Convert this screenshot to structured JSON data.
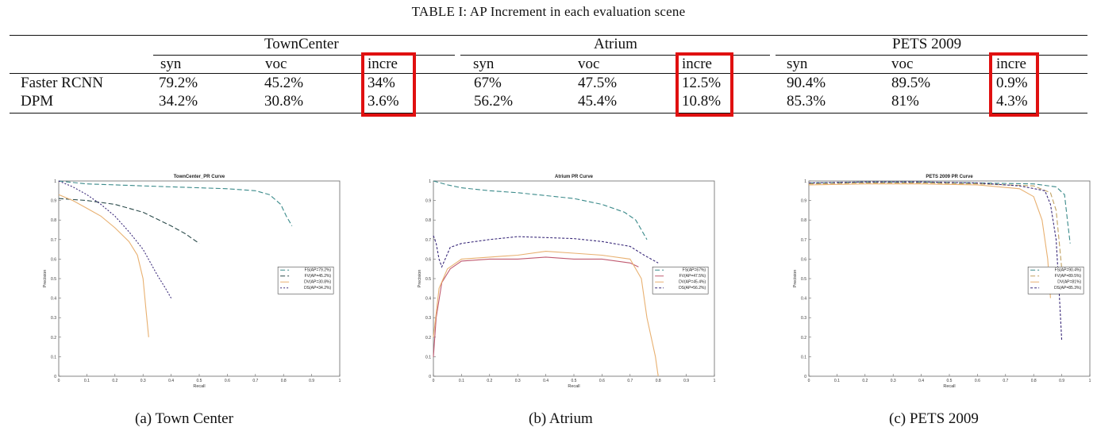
{
  "table": {
    "caption": "TABLE I: AP Increment in each evaluation scene",
    "groups": [
      "TownCenter",
      "Atrium",
      "PETS 2009"
    ],
    "subheaders": [
      "syn",
      "voc",
      "incre",
      "syn",
      "voc",
      "incre",
      "syn",
      "voc",
      "incre"
    ],
    "rows": [
      {
        "label": "Faster RCNN",
        "cells": [
          "79.2%",
          "45.2%",
          "34%",
          "67%",
          "47.5%",
          "12.5%",
          "90.4%",
          "89.5%",
          "0.9%"
        ]
      },
      {
        "label": "DPM",
        "cells": [
          "34.2%",
          "30.8%",
          "3.6%",
          "56.2%",
          "45.4%",
          "10.8%",
          "85.3%",
          "81%",
          "4.3%"
        ]
      }
    ],
    "highlight_color": "#e01010"
  },
  "chart_data": [
    {
      "type": "line",
      "title": "TownCenter_PR Curve",
      "xlabel": "Recall",
      "ylabel": "Precision",
      "xlim": [
        0,
        1
      ],
      "ylim": [
        0,
        1
      ],
      "xticks": [
        "0",
        "0.1",
        "0.2",
        "0.3",
        "0.4",
        "0.5",
        "0.6",
        "0.7",
        "0.8",
        "0.9",
        "1"
      ],
      "yticks": [
        "0",
        "0.1",
        "0.2",
        "0.3",
        "0.4",
        "0.5",
        "0.6",
        "0.7",
        "0.8",
        "0.9",
        "1"
      ],
      "legend_position": "center-right",
      "series": [
        {
          "name": "FS(AP=79.2%)",
          "color": "#3a8a8a",
          "dash": "6,3",
          "points": [
            [
              0.0,
              1.0
            ],
            [
              0.1,
              0.985
            ],
            [
              0.2,
              0.98
            ],
            [
              0.3,
              0.975
            ],
            [
              0.4,
              0.97
            ],
            [
              0.5,
              0.965
            ],
            [
              0.6,
              0.96
            ],
            [
              0.7,
              0.95
            ],
            [
              0.75,
              0.93
            ],
            [
              0.79,
              0.88
            ],
            [
              0.81,
              0.82
            ],
            [
              0.83,
              0.77
            ]
          ]
        },
        {
          "name": "FV(AP=45.2%)",
          "color": "#2a4a4a",
          "dash": "6,3",
          "points": [
            [
              0.0,
              0.91
            ],
            [
              0.1,
              0.9
            ],
            [
              0.2,
              0.88
            ],
            [
              0.3,
              0.84
            ],
            [
              0.4,
              0.77
            ],
            [
              0.45,
              0.73
            ],
            [
              0.5,
              0.68
            ]
          ]
        },
        {
          "name": "DV(AP=30.8%)",
          "color": "#e8b070",
          "dash": "",
          "points": [
            [
              0.0,
              0.93
            ],
            [
              0.05,
              0.9
            ],
            [
              0.1,
              0.86
            ],
            [
              0.15,
              0.82
            ],
            [
              0.2,
              0.76
            ],
            [
              0.25,
              0.69
            ],
            [
              0.28,
              0.62
            ],
            [
              0.3,
              0.5
            ],
            [
              0.31,
              0.35
            ],
            [
              0.32,
              0.2
            ]
          ]
        },
        {
          "name": "DS(AP=34.2%)",
          "color": "#3a2a7a",
          "dash": "2,2",
          "points": [
            [
              0.0,
              1.0
            ],
            [
              0.05,
              0.97
            ],
            [
              0.1,
              0.93
            ],
            [
              0.15,
              0.88
            ],
            [
              0.2,
              0.82
            ],
            [
              0.25,
              0.74
            ],
            [
              0.3,
              0.65
            ],
            [
              0.35,
              0.52
            ],
            [
              0.38,
              0.45
            ],
            [
              0.4,
              0.4
            ]
          ]
        }
      ]
    },
    {
      "type": "line",
      "title": "Atrium PR Curve",
      "xlabel": "Recall",
      "ylabel": "Precision",
      "xlim": [
        0,
        1
      ],
      "ylim": [
        0,
        1
      ],
      "xticks": [
        "0",
        "0.1",
        "0.2",
        "0.3",
        "0.4",
        "0.5",
        "0.6",
        "0.7",
        "0.8",
        "0.9",
        "1"
      ],
      "yticks": [
        "0",
        "0.1",
        "0.2",
        "0.3",
        "0.4",
        "0.5",
        "0.6",
        "0.7",
        "0.8",
        "0.9",
        "1"
      ],
      "legend_position": "center-right",
      "series": [
        {
          "name": "FS(AP=67%)",
          "color": "#3a8a8a",
          "dash": "6,3",
          "points": [
            [
              0.0,
              1.0
            ],
            [
              0.05,
              0.98
            ],
            [
              0.1,
              0.965
            ],
            [
              0.2,
              0.95
            ],
            [
              0.3,
              0.94
            ],
            [
              0.4,
              0.925
            ],
            [
              0.5,
              0.91
            ],
            [
              0.6,
              0.88
            ],
            [
              0.68,
              0.84
            ],
            [
              0.72,
              0.8
            ],
            [
              0.74,
              0.75
            ],
            [
              0.76,
              0.7
            ]
          ]
        },
        {
          "name": "FV(AP=47.5%)",
          "color": "#c05a70",
          "dash": "",
          "points": [
            [
              0.0,
              0.1
            ],
            [
              0.01,
              0.3
            ],
            [
              0.03,
              0.48
            ],
            [
              0.06,
              0.55
            ],
            [
              0.1,
              0.59
            ],
            [
              0.2,
              0.6
            ],
            [
              0.3,
              0.6
            ],
            [
              0.4,
              0.61
            ],
            [
              0.5,
              0.6
            ],
            [
              0.6,
              0.6
            ],
            [
              0.7,
              0.58
            ],
            [
              0.73,
              0.56
            ]
          ]
        },
        {
          "name": "DV(AP=45.4%)",
          "color": "#e8b070",
          "dash": "",
          "points": [
            [
              0.0,
              0.2
            ],
            [
              0.02,
              0.45
            ],
            [
              0.05,
              0.55
            ],
            [
              0.1,
              0.6
            ],
            [
              0.2,
              0.61
            ],
            [
              0.3,
              0.62
            ],
            [
              0.4,
              0.64
            ],
            [
              0.5,
              0.63
            ],
            [
              0.6,
              0.62
            ],
            [
              0.7,
              0.6
            ],
            [
              0.74,
              0.5
            ],
            [
              0.76,
              0.3
            ],
            [
              0.79,
              0.1
            ],
            [
              0.8,
              0.0
            ]
          ]
        },
        {
          "name": "DS(AP=56.2%)",
          "color": "#3a2a7a",
          "dash": "3,2",
          "points": [
            [
              0.0,
              0.72
            ],
            [
              0.01,
              0.68
            ],
            [
              0.02,
              0.6
            ],
            [
              0.03,
              0.56
            ],
            [
              0.06,
              0.66
            ],
            [
              0.1,
              0.68
            ],
            [
              0.2,
              0.7
            ],
            [
              0.3,
              0.715
            ],
            [
              0.4,
              0.71
            ],
            [
              0.5,
              0.705
            ],
            [
              0.6,
              0.69
            ],
            [
              0.7,
              0.665
            ],
            [
              0.75,
              0.62
            ],
            [
              0.8,
              0.58
            ]
          ]
        }
      ]
    },
    {
      "type": "line",
      "title": "PETS 2009 PR Curve",
      "xlabel": "Recall",
      "ylabel": "Precision",
      "xlim": [
        0,
        1
      ],
      "ylim": [
        0,
        1
      ],
      "xticks": [
        "0",
        "0.1",
        "0.2",
        "0.3",
        "0.4",
        "0.5",
        "0.6",
        "0.7",
        "0.8",
        "0.9",
        "1"
      ],
      "yticks": [
        "0",
        "0.1",
        "0.2",
        "0.3",
        "0.4",
        "0.5",
        "0.6",
        "0.7",
        "0.8",
        "0.9",
        "1"
      ],
      "legend_position": "center-right",
      "series": [
        {
          "name": "FS(AP=90.4%)",
          "color": "#3a8a8a",
          "dash": "6,3",
          "points": [
            [
              0.0,
              0.99
            ],
            [
              0.2,
              0.995
            ],
            [
              0.4,
              0.995
            ],
            [
              0.6,
              0.99
            ],
            [
              0.8,
              0.985
            ],
            [
              0.88,
              0.97
            ],
            [
              0.91,
              0.93
            ],
            [
              0.92,
              0.8
            ],
            [
              0.93,
              0.68
            ]
          ]
        },
        {
          "name": "FV(AP=89.5%)",
          "color": "#c0a060",
          "dash": "6,3",
          "points": [
            [
              0.0,
              0.985
            ],
            [
              0.2,
              0.99
            ],
            [
              0.4,
              0.99
            ],
            [
              0.6,
              0.985
            ],
            [
              0.8,
              0.975
            ],
            [
              0.86,
              0.94
            ],
            [
              0.88,
              0.85
            ],
            [
              0.89,
              0.7
            ],
            [
              0.9,
              0.55
            ]
          ]
        },
        {
          "name": "DV(AP=81%)",
          "color": "#e8b070",
          "dash": "",
          "points": [
            [
              0.0,
              0.98
            ],
            [
              0.2,
              0.985
            ],
            [
              0.4,
              0.985
            ],
            [
              0.6,
              0.98
            ],
            [
              0.75,
              0.96
            ],
            [
              0.8,
              0.92
            ],
            [
              0.83,
              0.8
            ],
            [
              0.85,
              0.6
            ],
            [
              0.86,
              0.4
            ]
          ]
        },
        {
          "name": "DS(AP=85.3%)",
          "color": "#3a2a7a",
          "dash": "3,2",
          "points": [
            [
              0.0,
              0.99
            ],
            [
              0.2,
              0.995
            ],
            [
              0.4,
              0.995
            ],
            [
              0.6,
              0.99
            ],
            [
              0.75,
              0.975
            ],
            [
              0.84,
              0.95
            ],
            [
              0.86,
              0.88
            ],
            [
              0.88,
              0.7
            ],
            [
              0.89,
              0.45
            ],
            [
              0.9,
              0.18
            ]
          ]
        }
      ]
    }
  ],
  "figure_captions": [
    "(a) Town Center",
    "(b) Atrium",
    "(c) PETS 2009"
  ]
}
